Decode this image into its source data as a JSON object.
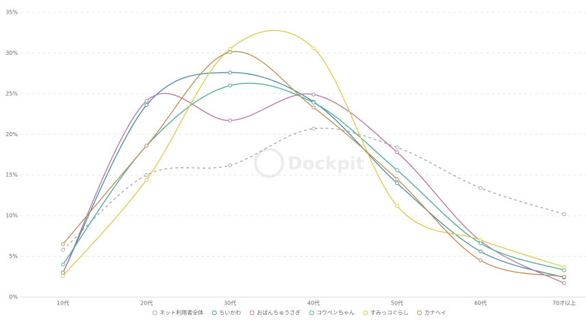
{
  "chart_data": {
    "type": "line",
    "watermark": "Dockpit",
    "categories": [
      "10代",
      "20代",
      "30代",
      "40代",
      "50代",
      "60代",
      "70才以上"
    ],
    "ylim": [
      0,
      35
    ],
    "yticks": [
      {
        "value": 0,
        "label": "0%"
      },
      {
        "value": 5,
        "label": "5%"
      },
      {
        "value": 10,
        "label": "10%"
      },
      {
        "value": 15,
        "label": "15%"
      },
      {
        "value": 20,
        "label": "20%"
      },
      {
        "value": 25,
        "label": "25%"
      },
      {
        "value": 30,
        "label": "30%"
      },
      {
        "value": 35,
        "label": "35%"
      }
    ],
    "grid": true,
    "legend": "bottom",
    "series": [
      {
        "name": "ネット利用者全体",
        "color": "#aaaaaa",
        "dashed": true,
        "values": [
          5.8,
          15.0,
          16.2,
          20.7,
          18.4,
          13.4,
          10.2
        ]
      },
      {
        "name": "ちいかわ",
        "color": "#4f8fa6",
        "values": [
          3.0,
          23.6,
          27.6,
          24.0,
          14.0,
          5.6,
          2.4
        ]
      },
      {
        "name": "おぱんちゅうさぎ",
        "color": "#b97aa6",
        "values": [
          3.0,
          24.1,
          21.7,
          24.9,
          17.8,
          6.9,
          1.7
        ]
      },
      {
        "name": "コウペンちゃん",
        "color": "#52ad9c",
        "values": [
          4.0,
          18.6,
          26.0,
          23.9,
          15.6,
          6.6,
          3.3
        ]
      },
      {
        "name": "すみっコぐらし",
        "color": "#dccd55",
        "values": [
          2.6,
          14.4,
          30.5,
          30.6,
          11.2,
          7.0,
          3.7
        ]
      },
      {
        "name": "カナヘイ",
        "color": "#bf8f58",
        "values": [
          6.5,
          18.6,
          30.1,
          23.3,
          14.5,
          4.5,
          2.5
        ]
      }
    ]
  }
}
